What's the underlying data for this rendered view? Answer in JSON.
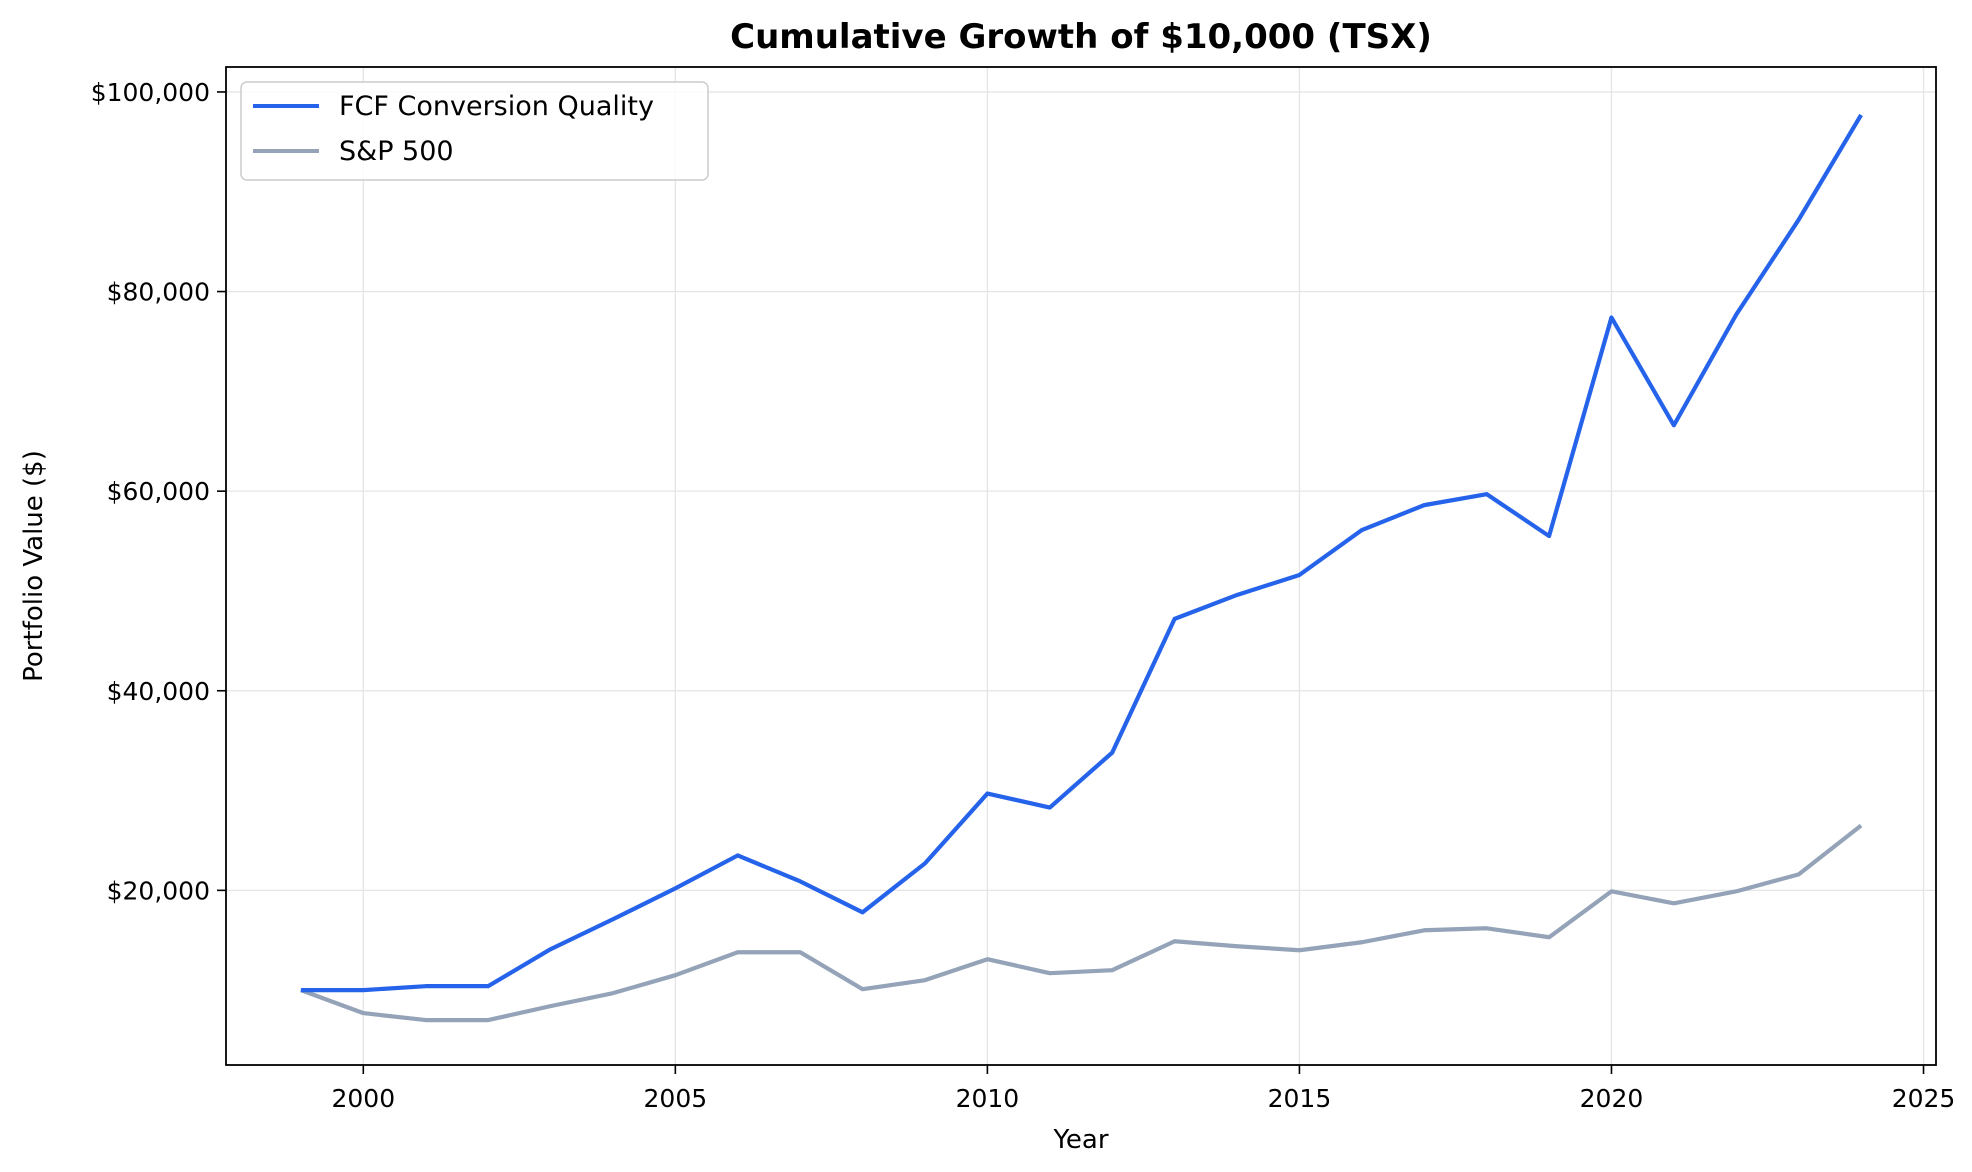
{
  "chart_data": {
    "type": "line",
    "title": "Cumulative Growth of $10,000 (TSX)",
    "xlabel": "Year",
    "ylabel": "Portfolio Value ($)",
    "xlim": [
      1997.8,
      2025.2
    ],
    "ylim": [
      2500,
      102500
    ],
    "xticks": [
      2000,
      2005,
      2010,
      2015,
      2020,
      2025
    ],
    "yticks": [
      20000,
      40000,
      60000,
      80000,
      100000
    ],
    "ytick_labels": [
      "$20,000",
      "$40,000",
      "$60,000",
      "$80,000",
      "$100,000"
    ],
    "grid": true,
    "legend_position": "top-left",
    "x": [
      1999,
      2000,
      2001,
      2002,
      2003,
      2004,
      2005,
      2006,
      2007,
      2008,
      2009,
      2010,
      2011,
      2012,
      2013,
      2014,
      2015,
      2016,
      2017,
      2018,
      2019,
      2020,
      2021,
      2022,
      2023,
      2024
    ],
    "series": [
      {
        "name": "FCF Conversion Quality",
        "color": "#2563eb",
        "values": [
          10000,
          10000,
          10400,
          10400,
          14100,
          17100,
          20200,
          23500,
          20900,
          17800,
          22700,
          29700,
          28300,
          33800,
          47200,
          49600,
          51600,
          56100,
          58600,
          59700,
          55500,
          77400,
          66600,
          77700,
          87200,
          97700
        ]
      },
      {
        "name": "S&P 500",
        "color": "#94a3b8",
        "values": [
          10000,
          7700,
          7000,
          7000,
          8400,
          9700,
          11500,
          13800,
          13800,
          10100,
          11000,
          13100,
          11700,
          12000,
          14900,
          14400,
          14000,
          14800,
          16000,
          16200,
          15300,
          19900,
          18700,
          19900,
          21600,
          26500
        ]
      }
    ]
  }
}
